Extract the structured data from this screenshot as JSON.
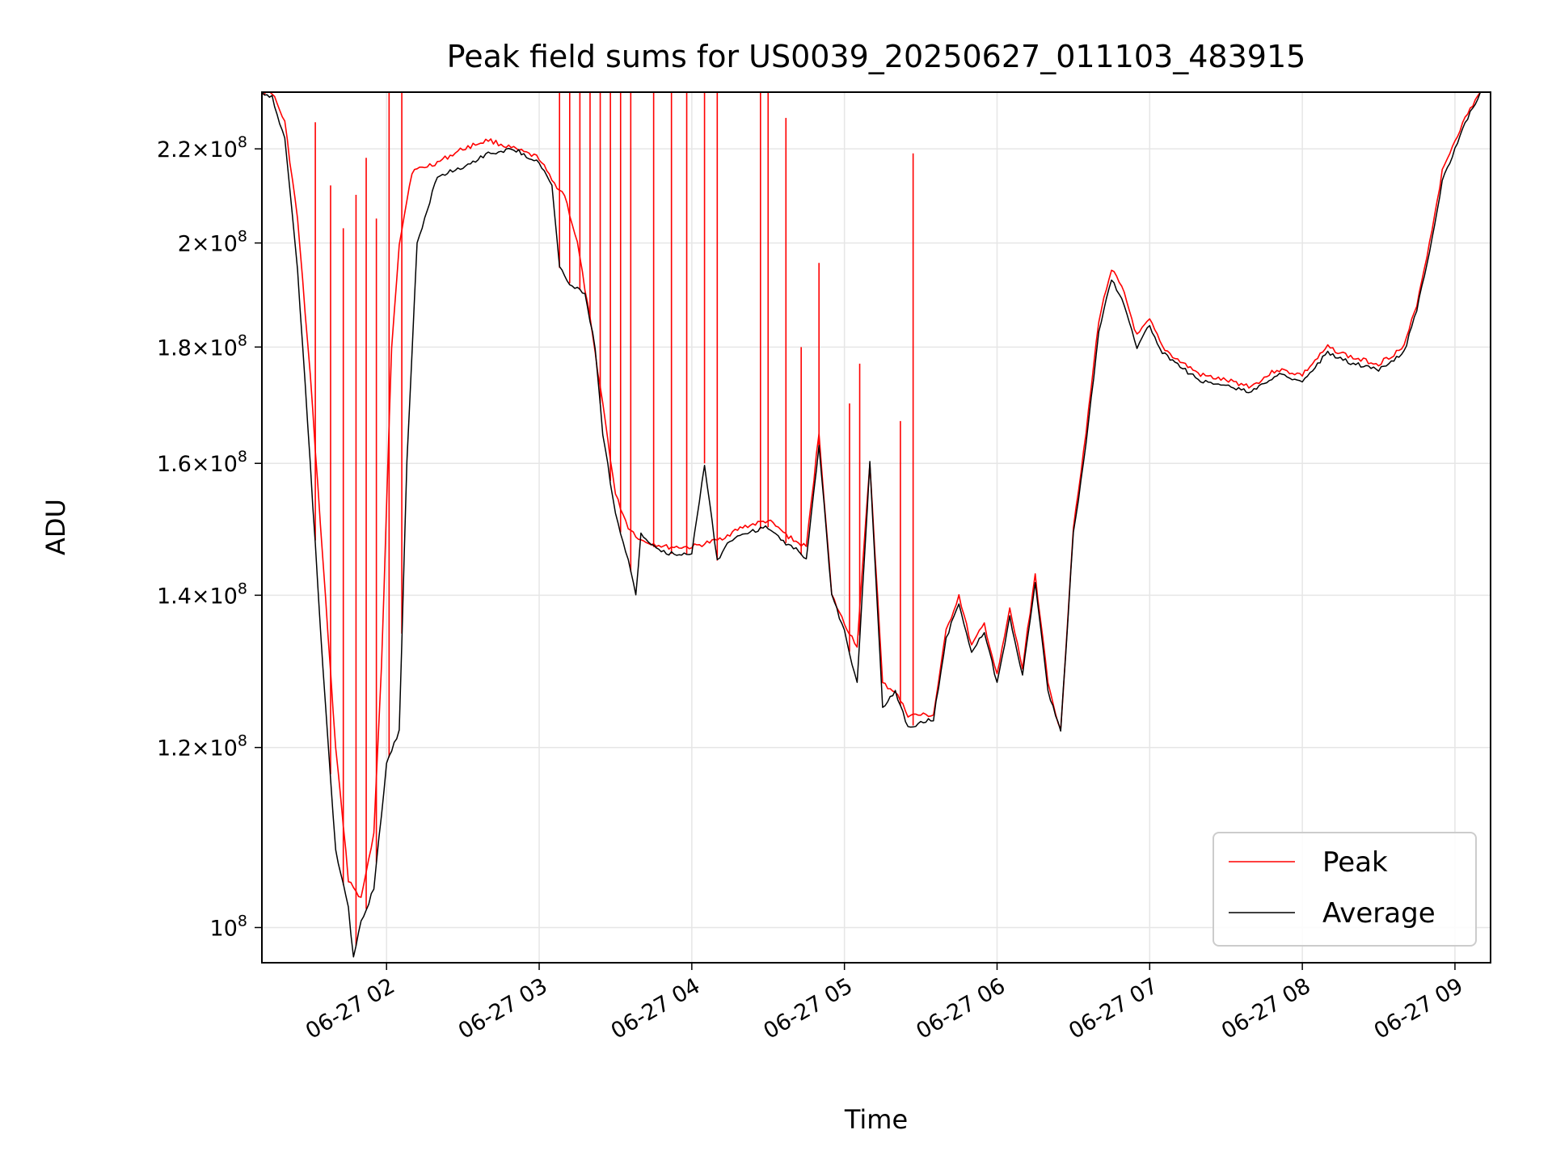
{
  "chart_data": {
    "type": "line",
    "title": "Peak field sums for US0039_20250627_011103_483915",
    "xlabel": "Time",
    "ylabel": "ADU",
    "y_scale": "log",
    "grid": true,
    "legend_position": "lower right",
    "xlim": [
      "2025-06-27 01:11",
      "2025-06-27 09:14"
    ],
    "ylim": [
      96500000,
      233000000
    ],
    "x_ticks": [
      {
        "value": "2025-06-27 02:00",
        "label": "06-27 02"
      },
      {
        "value": "2025-06-27 03:00",
        "label": "06-27 03"
      },
      {
        "value": "2025-06-27 04:00",
        "label": "06-27 04"
      },
      {
        "value": "2025-06-27 05:00",
        "label": "06-27 05"
      },
      {
        "value": "2025-06-27 06:00",
        "label": "06-27 06"
      },
      {
        "value": "2025-06-27 07:00",
        "label": "06-27 07"
      },
      {
        "value": "2025-06-27 08:00",
        "label": "06-27 08"
      },
      {
        "value": "2025-06-27 09:00",
        "label": "06-27 09"
      }
    ],
    "y_ticks": [
      {
        "value": 100000000,
        "mantissa": "",
        "exponent": "8"
      },
      {
        "value": 120000000,
        "mantissa": "1.2",
        "exponent": "8"
      },
      {
        "value": 140000000,
        "mantissa": "1.4",
        "exponent": "8"
      },
      {
        "value": 160000000,
        "mantissa": "1.6",
        "exponent": "8"
      },
      {
        "value": 180000000,
        "mantissa": "1.8",
        "exponent": "8"
      },
      {
        "value": 200000000,
        "mantissa": "2",
        "exponent": "8"
      },
      {
        "value": 220000000,
        "mantissa": "2.2",
        "exponent": "8"
      }
    ],
    "series": [
      {
        "name": "Peak",
        "color": "#ff0000",
        "points": [
          [
            "2025-06-27 01:11",
            233000000
          ],
          [
            "2025-06-27 01:15",
            233000000
          ],
          [
            "2025-06-27 01:20",
            226000000
          ],
          [
            "2025-06-27 01:25",
            205000000
          ],
          [
            "2025-06-27 01:30",
            175000000
          ],
          [
            "2025-06-27 01:35",
            145000000
          ],
          [
            "2025-06-27 01:40",
            120000000
          ],
          [
            "2025-06-27 01:45",
            105000000
          ],
          [
            "2025-06-27 01:50",
            103000000
          ],
          [
            "2025-06-27 01:55",
            110000000
          ],
          [
            "2025-06-27 01:58",
            130000000
          ],
          [
            "2025-06-27 02:02",
            180000000
          ],
          [
            "2025-06-27 02:05",
            200000000
          ],
          [
            "2025-06-27 02:10",
            215000000
          ],
          [
            "2025-06-27 02:20",
            217000000
          ],
          [
            "2025-06-27 02:30",
            220000000
          ],
          [
            "2025-06-27 02:40",
            222000000
          ],
          [
            "2025-06-27 02:50",
            220000000
          ],
          [
            "2025-06-27 03:00",
            218000000
          ],
          [
            "2025-06-27 03:05",
            213000000
          ],
          [
            "2025-06-27 03:10",
            210000000
          ],
          [
            "2025-06-27 03:15",
            200000000
          ],
          [
            "2025-06-27 03:20",
            185000000
          ],
          [
            "2025-06-27 03:25",
            170000000
          ],
          [
            "2025-06-27 03:30",
            155000000
          ],
          [
            "2025-06-27 03:35",
            150000000
          ],
          [
            "2025-06-27 03:40",
            148000000
          ],
          [
            "2025-06-27 03:50",
            147000000
          ],
          [
            "2025-06-27 04:00",
            147000000
          ],
          [
            "2025-06-27 04:10",
            148000000
          ],
          [
            "2025-06-27 04:20",
            150000000
          ],
          [
            "2025-06-27 04:30",
            151000000
          ],
          [
            "2025-06-27 04:40",
            148000000
          ],
          [
            "2025-06-27 04:45",
            147000000
          ],
          [
            "2025-06-27 04:50",
            165000000
          ],
          [
            "2025-06-27 04:55",
            140000000
          ],
          [
            "2025-06-27 05:00",
            136000000
          ],
          [
            "2025-06-27 05:05",
            133000000
          ],
          [
            "2025-06-27 05:10",
            160000000
          ],
          [
            "2025-06-27 05:15",
            128000000
          ],
          [
            "2025-06-27 05:20",
            127000000
          ],
          [
            "2025-06-27 05:25",
            124000000
          ],
          [
            "2025-06-27 05:30",
            124000000
          ],
          [
            "2025-06-27 05:35",
            124000000
          ],
          [
            "2025-06-27 05:40",
            135000000
          ],
          [
            "2025-06-27 05:45",
            140000000
          ],
          [
            "2025-06-27 05:50",
            133000000
          ],
          [
            "2025-06-27 05:55",
            136000000
          ],
          [
            "2025-06-27 06:00",
            129000000
          ],
          [
            "2025-06-27 06:05",
            138000000
          ],
          [
            "2025-06-27 06:10",
            130000000
          ],
          [
            "2025-06-27 06:15",
            143000000
          ],
          [
            "2025-06-27 06:20",
            128000000
          ],
          [
            "2025-06-27 06:25",
            122000000
          ],
          [
            "2025-06-27 06:30",
            150000000
          ],
          [
            "2025-06-27 06:35",
            165000000
          ],
          [
            "2025-06-27 06:40",
            185000000
          ],
          [
            "2025-06-27 06:45",
            195000000
          ],
          [
            "2025-06-27 06:50",
            190000000
          ],
          [
            "2025-06-27 06:55",
            182000000
          ],
          [
            "2025-06-27 07:00",
            185000000
          ],
          [
            "2025-06-27 07:05",
            180000000
          ],
          [
            "2025-06-27 07:10",
            178000000
          ],
          [
            "2025-06-27 07:20",
            175000000
          ],
          [
            "2025-06-27 07:30",
            174000000
          ],
          [
            "2025-06-27 07:40",
            173000000
          ],
          [
            "2025-06-27 07:50",
            176000000
          ],
          [
            "2025-06-27 08:00",
            175000000
          ],
          [
            "2025-06-27 08:10",
            180000000
          ],
          [
            "2025-06-27 08:20",
            178000000
          ],
          [
            "2025-06-27 08:30",
            177000000
          ],
          [
            "2025-06-27 08:40",
            180000000
          ],
          [
            "2025-06-27 08:45",
            188000000
          ],
          [
            "2025-06-27 08:50",
            200000000
          ],
          [
            "2025-06-27 08:55",
            215000000
          ],
          [
            "2025-06-27 09:00",
            222000000
          ],
          [
            "2025-06-27 09:05",
            228000000
          ],
          [
            "2025-06-27 09:10",
            233000000
          ]
        ]
      },
      {
        "name": "Average",
        "color": "#000000",
        "points": [
          [
            "2025-06-27 01:11",
            233000000
          ],
          [
            "2025-06-27 01:15",
            232000000
          ],
          [
            "2025-06-27 01:20",
            222000000
          ],
          [
            "2025-06-27 01:25",
            195000000
          ],
          [
            "2025-06-27 01:30",
            160000000
          ],
          [
            "2025-06-27 01:35",
            130000000
          ],
          [
            "2025-06-27 01:40",
            108000000
          ],
          [
            "2025-06-27 01:45",
            102000000
          ],
          [
            "2025-06-27 01:47",
            97000000
          ],
          [
            "2025-06-27 01:50",
            100500000
          ],
          [
            "2025-06-27 01:55",
            104000000
          ],
          [
            "2025-06-27 02:00",
            118000000
          ],
          [
            "2025-06-27 02:05",
            122000000
          ],
          [
            "2025-06-27 02:08",
            160000000
          ],
          [
            "2025-06-27 02:12",
            200000000
          ],
          [
            "2025-06-27 02:20",
            214000000
          ],
          [
            "2025-06-27 02:30",
            216000000
          ],
          [
            "2025-06-27 02:40",
            219000000
          ],
          [
            "2025-06-27 02:50",
            220000000
          ],
          [
            "2025-06-27 03:00",
            217000000
          ],
          [
            "2025-06-27 03:05",
            212000000
          ],
          [
            "2025-06-27 03:08",
            195000000
          ],
          [
            "2025-06-27 03:12",
            192000000
          ],
          [
            "2025-06-27 03:18",
            190000000
          ],
          [
            "2025-06-27 03:22",
            180000000
          ],
          [
            "2025-06-27 03:25",
            165000000
          ],
          [
            "2025-06-27 03:30",
            152000000
          ],
          [
            "2025-06-27 03:35",
            145000000
          ],
          [
            "2025-06-27 03:38",
            140000000
          ],
          [
            "2025-06-27 03:40",
            149000000
          ],
          [
            "2025-06-27 03:45",
            147000000
          ],
          [
            "2025-06-27 03:50",
            146000000
          ],
          [
            "2025-06-27 04:00",
            146000000
          ],
          [
            "2025-06-27 04:05",
            160000000
          ],
          [
            "2025-06-27 04:10",
            145000000
          ],
          [
            "2025-06-27 04:15",
            148000000
          ],
          [
            "2025-06-27 04:20",
            149000000
          ],
          [
            "2025-06-27 04:30",
            150000000
          ],
          [
            "2025-06-27 04:35",
            148000000
          ],
          [
            "2025-06-27 04:40",
            147000000
          ],
          [
            "2025-06-27 04:45",
            145000000
          ],
          [
            "2025-06-27 04:50",
            163000000
          ],
          [
            "2025-06-27 04:55",
            140000000
          ],
          [
            "2025-06-27 05:00",
            135000000
          ],
          [
            "2025-06-27 05:05",
            128000000
          ],
          [
            "2025-06-27 05:10",
            160000000
          ],
          [
            "2025-06-27 05:15",
            125000000
          ],
          [
            "2025-06-27 05:20",
            127000000
          ],
          [
            "2025-06-27 05:25",
            122500000
          ],
          [
            "2025-06-27 05:30",
            123000000
          ],
          [
            "2025-06-27 05:35",
            123500000
          ],
          [
            "2025-06-27 05:40",
            134000000
          ],
          [
            "2025-06-27 05:45",
            139000000
          ],
          [
            "2025-06-27 05:50",
            132000000
          ],
          [
            "2025-06-27 05:55",
            135000000
          ],
          [
            "2025-06-27 06:00",
            128000000
          ],
          [
            "2025-06-27 06:05",
            137000000
          ],
          [
            "2025-06-27 06:10",
            129000000
          ],
          [
            "2025-06-27 06:15",
            142000000
          ],
          [
            "2025-06-27 06:20",
            127000000
          ],
          [
            "2025-06-27 06:25",
            122000000
          ],
          [
            "2025-06-27 06:30",
            149000000
          ],
          [
            "2025-06-27 06:35",
            163000000
          ],
          [
            "2025-06-27 06:40",
            183000000
          ],
          [
            "2025-06-27 06:45",
            193000000
          ],
          [
            "2025-06-27 06:50",
            188000000
          ],
          [
            "2025-06-27 06:55",
            180000000
          ],
          [
            "2025-06-27 07:00",
            184000000
          ],
          [
            "2025-06-27 07:05",
            179000000
          ],
          [
            "2025-06-27 07:10",
            177000000
          ],
          [
            "2025-06-27 07:20",
            174000000
          ],
          [
            "2025-06-27 07:30",
            173000000
          ],
          [
            "2025-06-27 07:40",
            172000000
          ],
          [
            "2025-06-27 07:50",
            175000000
          ],
          [
            "2025-06-27 08:00",
            174000000
          ],
          [
            "2025-06-27 08:10",
            179000000
          ],
          [
            "2025-06-27 08:20",
            177000000
          ],
          [
            "2025-06-27 08:30",
            176000000
          ],
          [
            "2025-06-27 08:40",
            179000000
          ],
          [
            "2025-06-27 08:45",
            187000000
          ],
          [
            "2025-06-27 08:50",
            198000000
          ],
          [
            "2025-06-27 08:55",
            213000000
          ],
          [
            "2025-06-27 09:00",
            220000000
          ],
          [
            "2025-06-27 09:05",
            227000000
          ],
          [
            "2025-06-27 09:10",
            233000000
          ]
        ]
      }
    ],
    "spikes": {
      "series": "Peak",
      "note_times": [
        [
          "2025-06-27 01:32",
          226000000
        ],
        [
          "2025-06-27 01:38",
          212000000
        ],
        [
          "2025-06-27 01:43",
          203000000
        ],
        [
          "2025-06-27 01:48",
          210000000
        ],
        [
          "2025-06-27 01:52",
          218000000
        ],
        [
          "2025-06-27 01:56",
          205000000
        ],
        [
          "2025-06-27 02:01",
          233000000
        ],
        [
          "2025-06-27 02:06",
          233000000
        ],
        [
          "2025-06-27 03:08",
          233000000
        ],
        [
          "2025-06-27 03:12",
          233000000
        ],
        [
          "2025-06-27 03:16",
          233000000
        ],
        [
          "2025-06-27 03:20",
          233000000
        ],
        [
          "2025-06-27 03:24",
          233000000
        ],
        [
          "2025-06-27 03:28",
          233000000
        ],
        [
          "2025-06-27 03:32",
          233000000
        ],
        [
          "2025-06-27 03:36",
          233000000
        ],
        [
          "2025-06-27 03:45",
          233000000
        ],
        [
          "2025-06-27 03:52",
          233000000
        ],
        [
          "2025-06-27 03:58",
          233000000
        ],
        [
          "2025-06-27 04:05",
          233000000
        ],
        [
          "2025-06-27 04:10",
          233000000
        ],
        [
          "2025-06-27 04:27",
          233000000
        ],
        [
          "2025-06-27 04:30",
          233000000
        ],
        [
          "2025-06-27 04:37",
          227000000
        ],
        [
          "2025-06-27 04:43",
          180000000
        ],
        [
          "2025-06-27 04:50",
          196000000
        ],
        [
          "2025-06-27 05:02",
          170000000
        ],
        [
          "2025-06-27 05:06",
          177000000
        ],
        [
          "2025-06-27 05:22",
          167000000
        ],
        [
          "2025-06-27 05:27",
          219000000
        ]
      ]
    }
  }
}
